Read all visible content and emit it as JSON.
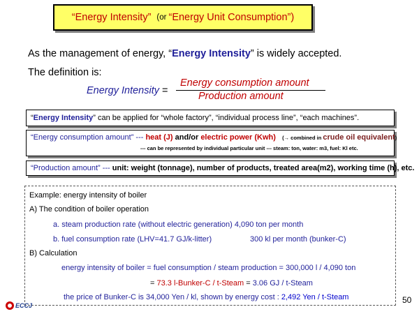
{
  "title": {
    "part1": "“Energy Intensity”",
    "or": "(or",
    "part2": "“Energy Unit Consumption”)"
  },
  "intro": {
    "before": "As the management of energy, “",
    "bold": "Energy Intensity",
    "after": "” is widely accepted."
  },
  "definition_label": "The definition is:",
  "formula": {
    "lhs": "Energy Intensity",
    "eq": "=",
    "numerator": "Energy consumption amount",
    "denominator": "Production amount"
  },
  "box1": {
    "q1": "“",
    "bold": "Energy Intensity",
    "text": "” can be applied for “whole factory”, “individual process line”, “each machines”."
  },
  "box2": {
    "lead": "“Energy consumption amount” --- ",
    "heat": "heat (J)",
    "andor": " and/or ",
    "elec": "electric power (Kwh)",
    "arrow_prefix": "(→ combined in ",
    "crude": "crude oil equivalent",
    "arrow_suffix": ")",
    "note": "--- can be represented by individual particular unit --- steam: ton,  water: m3,  fuel: Kl etc."
  },
  "box3": {
    "lead": "“Production amount” --- ",
    "text": "unit: weight (tonnage), number of products, treated area(m2), working time (h), etc."
  },
  "example": {
    "heading": "Example: energy intensity of boiler",
    "a_title": "A) The condition of boiler operation",
    "a1": "a. steam production rate (without electric generation) 4,090 ton per month",
    "a2_left": "b. fuel consumption rate (LHV=41.7 GJ/k-litter)",
    "a2_right": "300 kl per month   (bunker-C)",
    "b_title": "B) Calculation",
    "calc1": "energy intensity of boiler = fuel consumption / steam production = 300,000 l / 4,090 ton",
    "calc2_eq": "= ",
    "calc2_red": "73.3 l-Bunker-C / t-Steam",
    "calc2_mid": " = ",
    "calc2_blue": "3.06 GJ / t-Steam",
    "price_left": "the price of Bunker-C is 34,000 Yen / kl,    shown by energy cost : ",
    "price_value": "2,492 Yen / t-Steam"
  },
  "page_number": "50",
  "logo_text": "ECCJ"
}
